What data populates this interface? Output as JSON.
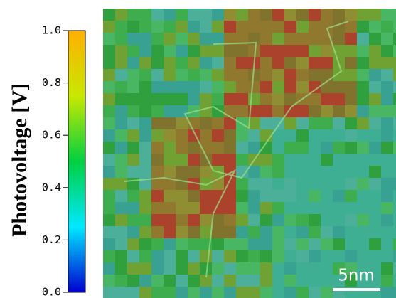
{
  "chart_data": {
    "type": "heatmap",
    "colorbar": {
      "label": "Photovoltage [V]",
      "lim": [
        0,
        1
      ],
      "ticks": [
        {
          "value": 0,
          "label": "0.0"
        },
        {
          "value": 0.2,
          "label": "0.2"
        },
        {
          "value": 0.4,
          "label": "0.4"
        },
        {
          "value": 0.6,
          "label": "0.6"
        },
        {
          "value": 0.8,
          "label": "0.8"
        },
        {
          "value": 1,
          "label": "1.0"
        }
      ],
      "colormap": [
        "#0000d0",
        "#00e8ff",
        "#00d040",
        "#c8e800",
        "#ffb000"
      ]
    },
    "scale_bar_label": "5nm"
  }
}
